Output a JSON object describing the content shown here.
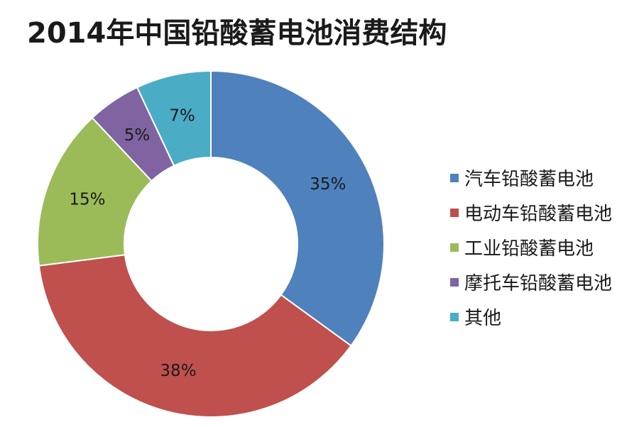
{
  "chart_data": {
    "type": "pie",
    "title": "2014年中国铅酸蓄电池消费结构",
    "donut": true,
    "legend_position": "right",
    "slices": [
      {
        "name": "汽车铅酸蓄电池",
        "value": 35,
        "label": "35%",
        "color": "#4f81bd"
      },
      {
        "name": "电动车铅酸蓄电池",
        "value": 38,
        "label": "38%",
        "color": "#c0504d"
      },
      {
        "name": "工业铅酸蓄电池",
        "value": 15,
        "label": "15%",
        "color": "#9bbb59"
      },
      {
        "name": "摩托车铅酸蓄电池",
        "value": 5,
        "label": "5%",
        "color": "#8064a2"
      },
      {
        "name": "其他",
        "value": 7,
        "label": "7%",
        "color": "#4bacc6"
      }
    ]
  }
}
